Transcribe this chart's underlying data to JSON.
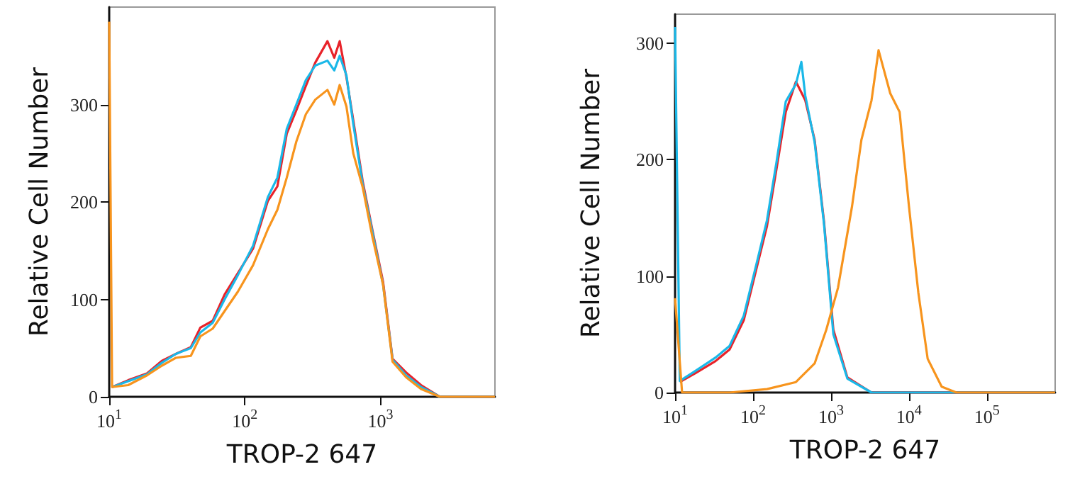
{
  "chart_data": [
    {
      "type": "line",
      "xlabel": "TROP-2 647",
      "ylabel": "Relative Cell Number",
      "log": "x",
      "xlim": [
        10,
        7000
      ],
      "ylim": [
        0,
        400
      ],
      "xticks": [
        {
          "value": 10,
          "label": "10$^{1}$"
        },
        {
          "value": 100,
          "label": "10$^{2}$"
        },
        {
          "value": 1000,
          "label": "10$^{3}$"
        }
      ],
      "yticks": [
        0,
        100,
        200,
        300
      ],
      "series": [
        {
          "color": "#e8232a",
          "x": [
            10.5,
            13.8,
            19,
            24.5,
            31,
            40,
            47,
            58,
            71,
            89,
            115,
            148,
            174,
            204,
            240,
            282,
            331,
            407,
            457,
            501,
            562,
            631,
            741,
            871,
            1047,
            1230,
            1549,
            1995,
            2754,
            7000
          ],
          "values": [
            10,
            17,
            24,
            37,
            44,
            51,
            71,
            78,
            105,
            127,
            152,
            201,
            216,
            270,
            294,
            319,
            343,
            365,
            348,
            365,
            328,
            284,
            221,
            172,
            118,
            39,
            25,
            12,
            0,
            0
          ]
        },
        {
          "color": "#1ab8e8",
          "x": [
            10.5,
            13.8,
            19,
            24.5,
            31,
            40,
            47,
            58,
            71,
            89,
            115,
            148,
            174,
            204,
            240,
            282,
            331,
            407,
            457,
            501,
            562,
            631,
            741,
            871,
            1047,
            1230,
            1549,
            1995,
            2754,
            7000
          ],
          "values": [
            10,
            16,
            23,
            35,
            44,
            50,
            66,
            76,
            100,
            125,
            155,
            205,
            225,
            275,
            300,
            325,
            340,
            345,
            335,
            350,
            330,
            280,
            218,
            170,
            115,
            38,
            22,
            10,
            0,
            0
          ]
        },
        {
          "color": "#f7941d",
          "x": [
            10,
            10.5,
            13.8,
            19,
            24.5,
            31,
            40,
            47,
            58,
            71,
            89,
            115,
            148,
            174,
            204,
            240,
            282,
            331,
            407,
            457,
            501,
            562,
            631,
            741,
            871,
            1047,
            1230,
            1549,
            1995,
            2754,
            7000
          ],
          "values": [
            385,
            10,
            12,
            22,
            32,
            40,
            42,
            62,
            70,
            88,
            108,
            135,
            172,
            192,
            225,
            262,
            290,
            305,
            315,
            300,
            320,
            298,
            250,
            215,
            165,
            115,
            36,
            20,
            8,
            0,
            0
          ]
        }
      ]
    },
    {
      "type": "line",
      "xlabel": "TROP-2 647",
      "ylabel": "Relative Cell Number",
      "log": "x",
      "xlim": [
        10,
        750000
      ],
      "ylim": [
        0,
        325
      ],
      "xticks": [
        {
          "value": 10,
          "label": "10$^{1}$"
        },
        {
          "value": 100,
          "label": "10$^{2}$"
        },
        {
          "value": 1000,
          "label": "10$^{3}$"
        },
        {
          "value": 10000,
          "label": "10$^{4}$"
        },
        {
          "value": 100000,
          "label": "10$^{5}$"
        }
      ],
      "yticks": [
        0,
        100,
        200,
        300
      ],
      "series": [
        {
          "color": "#e8232a",
          "x": [
            11.5,
            18.6,
            33,
            50,
            76,
            115,
            151,
            200,
            263,
            355,
            468,
            617,
            813,
            1072,
            1622,
            3311,
            750000
          ],
          "values": [
            9,
            17,
            27,
            37,
            62,
            111,
            143,
            192,
            241,
            267,
            251,
            217,
            147,
            54,
            13,
            0,
            0
          ]
        },
        {
          "color": "#1ab8e8",
          "x": [
            10,
            11.5,
            18.6,
            33,
            50,
            76,
            115,
            151,
            200,
            263,
            355,
            417,
            468,
            617,
            813,
            1072,
            1622,
            3311,
            750000
          ],
          "values": [
            314,
            10,
            19,
            30,
            40,
            66,
            115,
            148,
            198,
            250,
            265,
            284,
            255,
            215,
            145,
            50,
            12,
            0,
            0
          ]
        },
        {
          "color": "#f7941d",
          "x": [
            10,
            12.3,
            50,
            151,
            355,
            617,
            871,
            1230,
            1862,
            2455,
            3311,
            4074,
            5754,
            7586,
            10000,
            13183,
            17378,
            26303,
            40738,
            750000
          ],
          "values": [
            81,
            0,
            0,
            3,
            9,
            25,
            54,
            90,
            160,
            217,
            251,
            294,
            257,
            241,
            160,
            86,
            29,
            5,
            0,
            0
          ]
        }
      ]
    }
  ]
}
